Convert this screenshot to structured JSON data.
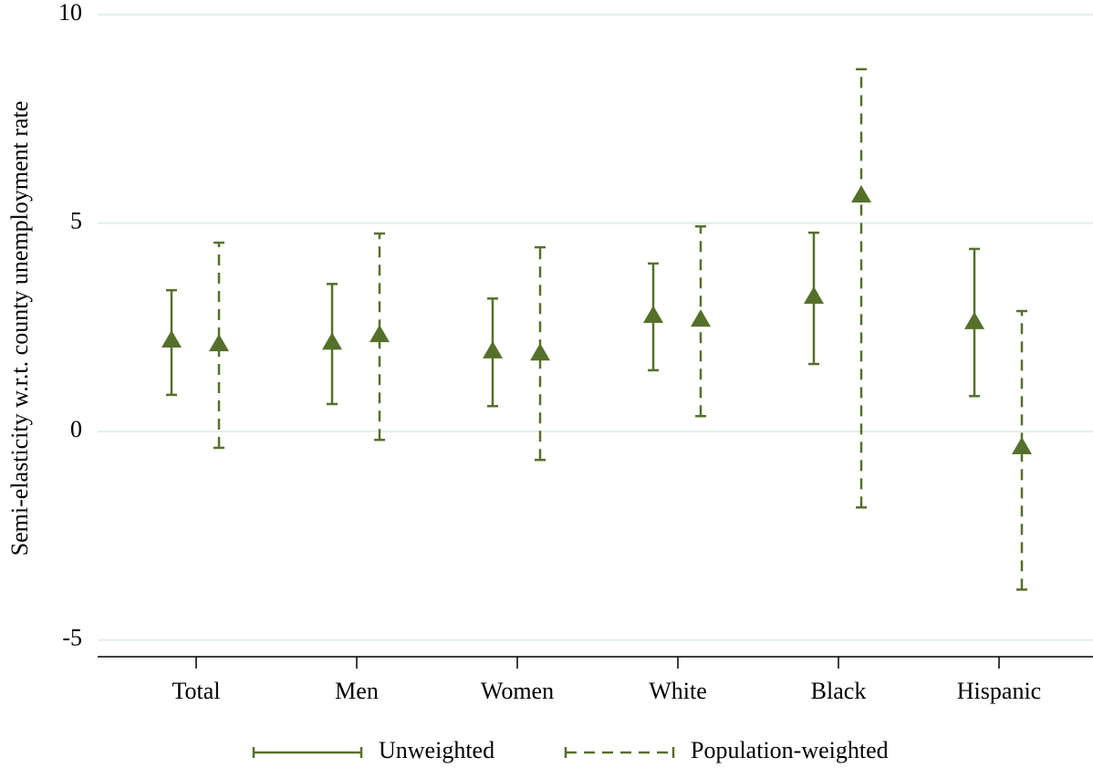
{
  "chart_data": {
    "type": "errorbar",
    "y_label": "Semi-elasticity w.r.t. county unemployment rate",
    "categories": [
      "Total",
      "Men",
      "Women",
      "White",
      "Black",
      "Hispanic"
    ],
    "series": [
      {
        "name": "Unweighted",
        "color": "#55702b",
        "line_style": "solid",
        "values": [
          2.19,
          2.14,
          1.93,
          2.78,
          3.24,
          2.63
        ],
        "lower": [
          0.88,
          0.66,
          0.61,
          1.47,
          1.62,
          0.85
        ],
        "upper": [
          3.39,
          3.54,
          3.19,
          4.03,
          4.77,
          4.38
        ]
      },
      {
        "name": "Population-weighted",
        "color": "#55702b",
        "line_style": "dashed",
        "values": [
          2.1,
          2.32,
          1.88,
          2.69,
          5.67,
          -0.37
        ],
        "lower": [
          -0.39,
          -0.2,
          -0.68,
          0.37,
          -1.82,
          -3.79
        ],
        "upper": [
          4.53,
          4.75,
          4.42,
          4.92,
          8.69,
          2.89
        ]
      }
    ],
    "ylim": [
      -5.4,
      10
    ],
    "yticks": [
      -5,
      0,
      5,
      10
    ],
    "grid": true,
    "legend": "bottom"
  }
}
